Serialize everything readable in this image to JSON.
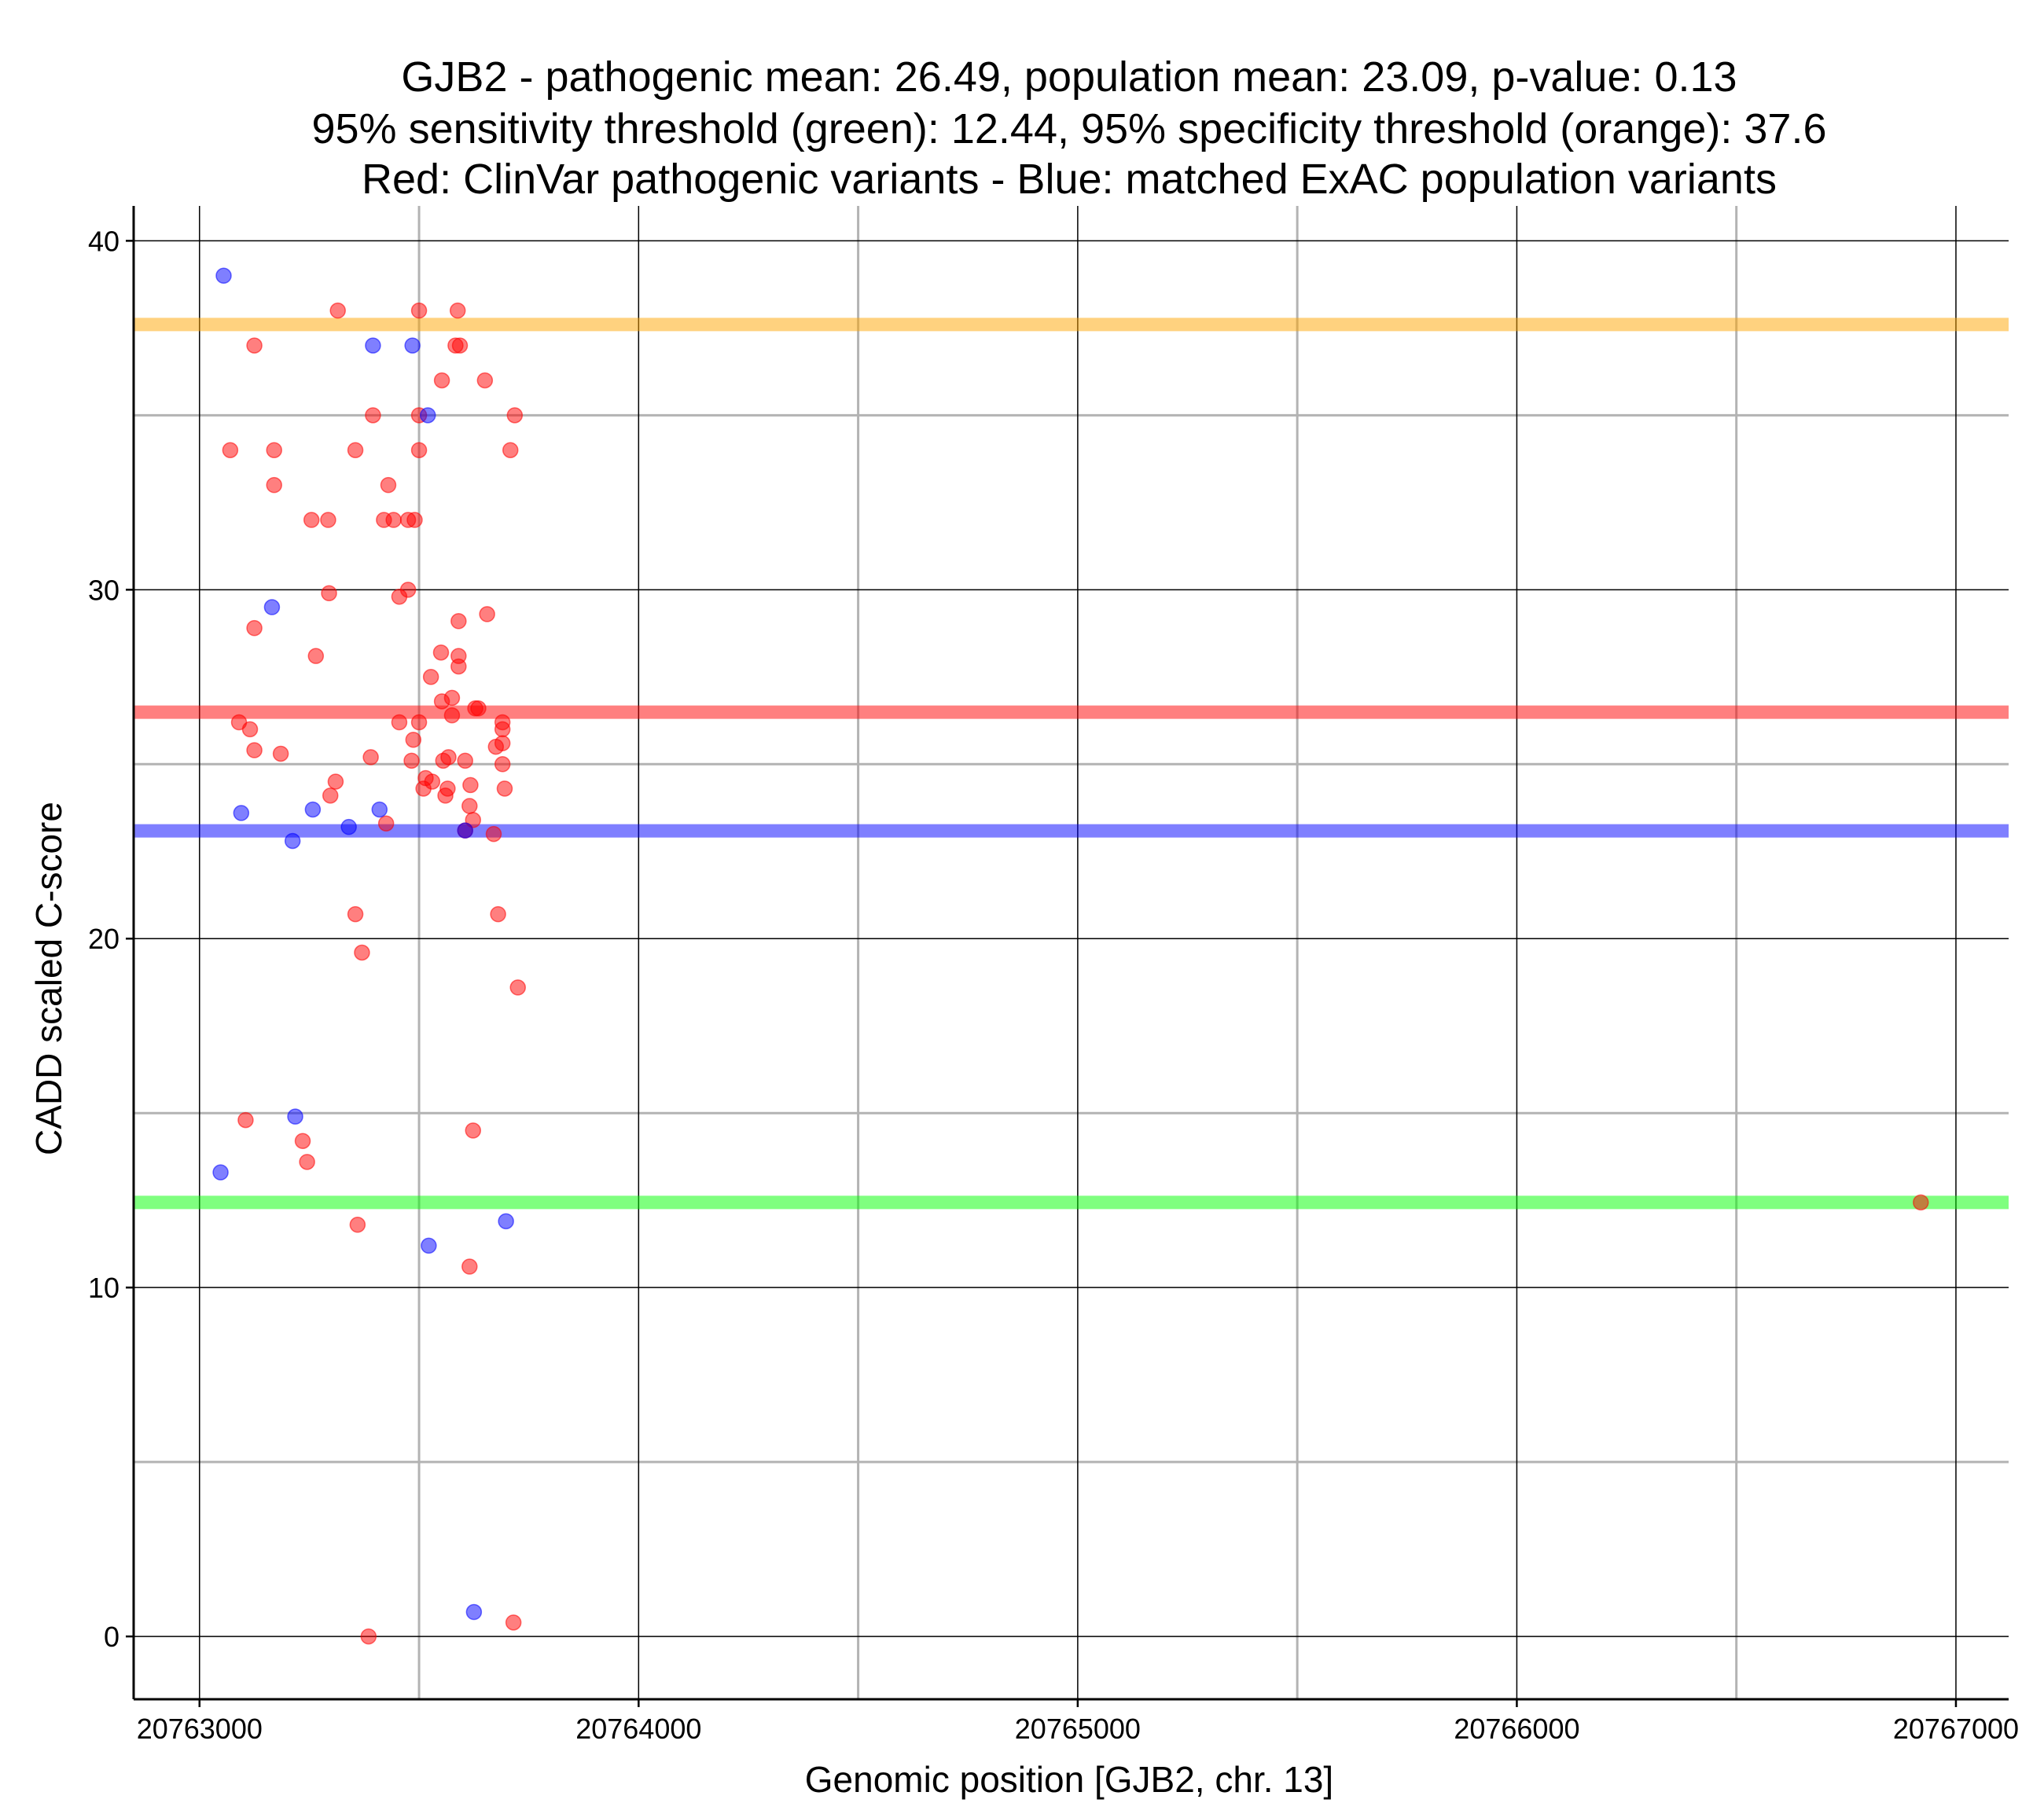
{
  "chart_data": {
    "type": "scatter",
    "title_lines": [
      "GJB2 - pathogenic mean: 26.49, population mean: 23.09, p-value: 0.13",
      "95% sensitivity threshold (green): 12.44, 95% specificity threshold (orange): 37.6",
      "Red: ClinVar pathogenic variants - Blue: matched ExAC population variants"
    ],
    "xlabel": "Genomic position [GJB2, chr. 13]",
    "ylabel": "CADD scaled C-score",
    "xlim": [
      20762850,
      20767120
    ],
    "ylim": [
      -1.8,
      41.0
    ],
    "x_major_ticks": [
      20763000,
      20764000,
      20765000,
      20766000,
      20767000
    ],
    "x_minor_ticks": [
      20763500,
      20764500,
      20765500,
      20766500
    ],
    "x_tick_labels": [
      "20763000",
      "20764000",
      "20765000",
      "20766000",
      "20767000"
    ],
    "y_major_ticks": [
      0,
      10,
      20,
      30,
      40
    ],
    "y_minor_ticks": [
      5,
      15,
      25,
      35
    ],
    "y_tick_labels": [
      "0",
      "10",
      "20",
      "30",
      "40"
    ],
    "grid": true,
    "colors": {
      "pathogenic": "#ff0000",
      "population": "#0000ff",
      "sensitivity": "#00ff00",
      "specificity": "#ffa500",
      "outlier": "#808000"
    },
    "reference_lines": [
      {
        "name": "specificity threshold",
        "value": 37.6,
        "color": "#ffa500"
      },
      {
        "name": "pathogenic mean",
        "value": 26.49,
        "color": "#ff0000"
      },
      {
        "name": "population mean",
        "value": 23.09,
        "color": "#0000ff"
      },
      {
        "name": "sensitivity threshold",
        "value": 12.44,
        "color": "#00ff00"
      }
    ],
    "series": [
      {
        "name": "ClinVar pathogenic variants",
        "color": "#ff0000",
        "points": [
          [
            20763315,
            38
          ],
          [
            20763500,
            38
          ],
          [
            20763588,
            38
          ],
          [
            20763125,
            37
          ],
          [
            20763583,
            37
          ],
          [
            20763593,
            37
          ],
          [
            20763552,
            36
          ],
          [
            20763650,
            36
          ],
          [
            20763395,
            35
          ],
          [
            20763500,
            35
          ],
          [
            20763718,
            35
          ],
          [
            20763070,
            34
          ],
          [
            20763170,
            34
          ],
          [
            20763355,
            34
          ],
          [
            20763500,
            34
          ],
          [
            20763708,
            34
          ],
          [
            20763170,
            33
          ],
          [
            20763430,
            33
          ],
          [
            20763255,
            32
          ],
          [
            20763293,
            32
          ],
          [
            20763420,
            32
          ],
          [
            20763442,
            32
          ],
          [
            20763475,
            32
          ],
          [
            20763490,
            32
          ],
          [
            20763475,
            30
          ],
          [
            20763295,
            29.9
          ],
          [
            20763455,
            29.8
          ],
          [
            20763655,
            29.3
          ],
          [
            20763590,
            29.1
          ],
          [
            20763125,
            28.9
          ],
          [
            20763550,
            28.2
          ],
          [
            20763590,
            28.1
          ],
          [
            20763265,
            28.1
          ],
          [
            20763590,
            27.8
          ],
          [
            20763527,
            27.5
          ],
          [
            20763575,
            26.9
          ],
          [
            20763552,
            26.8
          ],
          [
            20763628,
            26.6
          ],
          [
            20763635,
            26.6
          ],
          [
            20763575,
            26.4
          ],
          [
            20763090,
            26.2
          ],
          [
            20763455,
            26.2
          ],
          [
            20763500,
            26.2
          ],
          [
            20763115,
            26.0
          ],
          [
            20763690,
            26.0
          ],
          [
            20763690,
            26.2
          ],
          [
            20763487,
            25.7
          ],
          [
            20763690,
            25.6
          ],
          [
            20763675,
            25.5
          ],
          [
            20763125,
            25.4
          ],
          [
            20763185,
            25.3
          ],
          [
            20763390,
            25.2
          ],
          [
            20763555,
            25.1
          ],
          [
            20763567,
            25.2
          ],
          [
            20763483,
            25.1
          ],
          [
            20763605,
            25.1
          ],
          [
            20763690,
            25.0
          ],
          [
            20763515,
            24.6
          ],
          [
            20763530,
            24.5
          ],
          [
            20763310,
            24.5
          ],
          [
            20763617,
            24.4
          ],
          [
            20763510,
            24.3
          ],
          [
            20763565,
            24.3
          ],
          [
            20763695,
            24.3
          ],
          [
            20763298,
            24.1
          ],
          [
            20763560,
            24.1
          ],
          [
            20763615,
            23.8
          ],
          [
            20763623,
            23.4
          ],
          [
            20763425,
            23.3
          ],
          [
            20763605,
            23.1
          ],
          [
            20763670,
            23.0
          ],
          [
            20763355,
            20.7
          ],
          [
            20763680,
            20.7
          ],
          [
            20763370,
            19.6
          ],
          [
            20763725,
            18.6
          ],
          [
            20763105,
            14.8
          ],
          [
            20763623,
            14.5
          ],
          [
            20763235,
            14.2
          ],
          [
            20763245,
            13.6
          ],
          [
            20763360,
            11.8
          ],
          [
            20763615,
            10.6
          ],
          [
            20763385,
            0
          ],
          [
            20763715,
            0.4
          ],
          [
            20766920,
            12.44
          ]
        ]
      },
      {
        "name": "matched ExAC population variants",
        "color": "#0000ff",
        "points": [
          [
            20763055,
            39
          ],
          [
            20763395,
            37
          ],
          [
            20763485,
            37
          ],
          [
            20763520,
            35
          ],
          [
            20763165,
            29.5
          ],
          [
            20763095,
            23.6
          ],
          [
            20763258,
            23.7
          ],
          [
            20763410,
            23.7
          ],
          [
            20763340,
            23.2
          ],
          [
            20763605,
            23.1
          ],
          [
            20763212,
            22.8
          ],
          [
            20763218,
            14.9
          ],
          [
            20763048,
            13.3
          ],
          [
            20763522,
            11.2
          ],
          [
            20763698,
            11.9
          ],
          [
            20763625,
            0.7
          ]
        ]
      }
    ]
  }
}
